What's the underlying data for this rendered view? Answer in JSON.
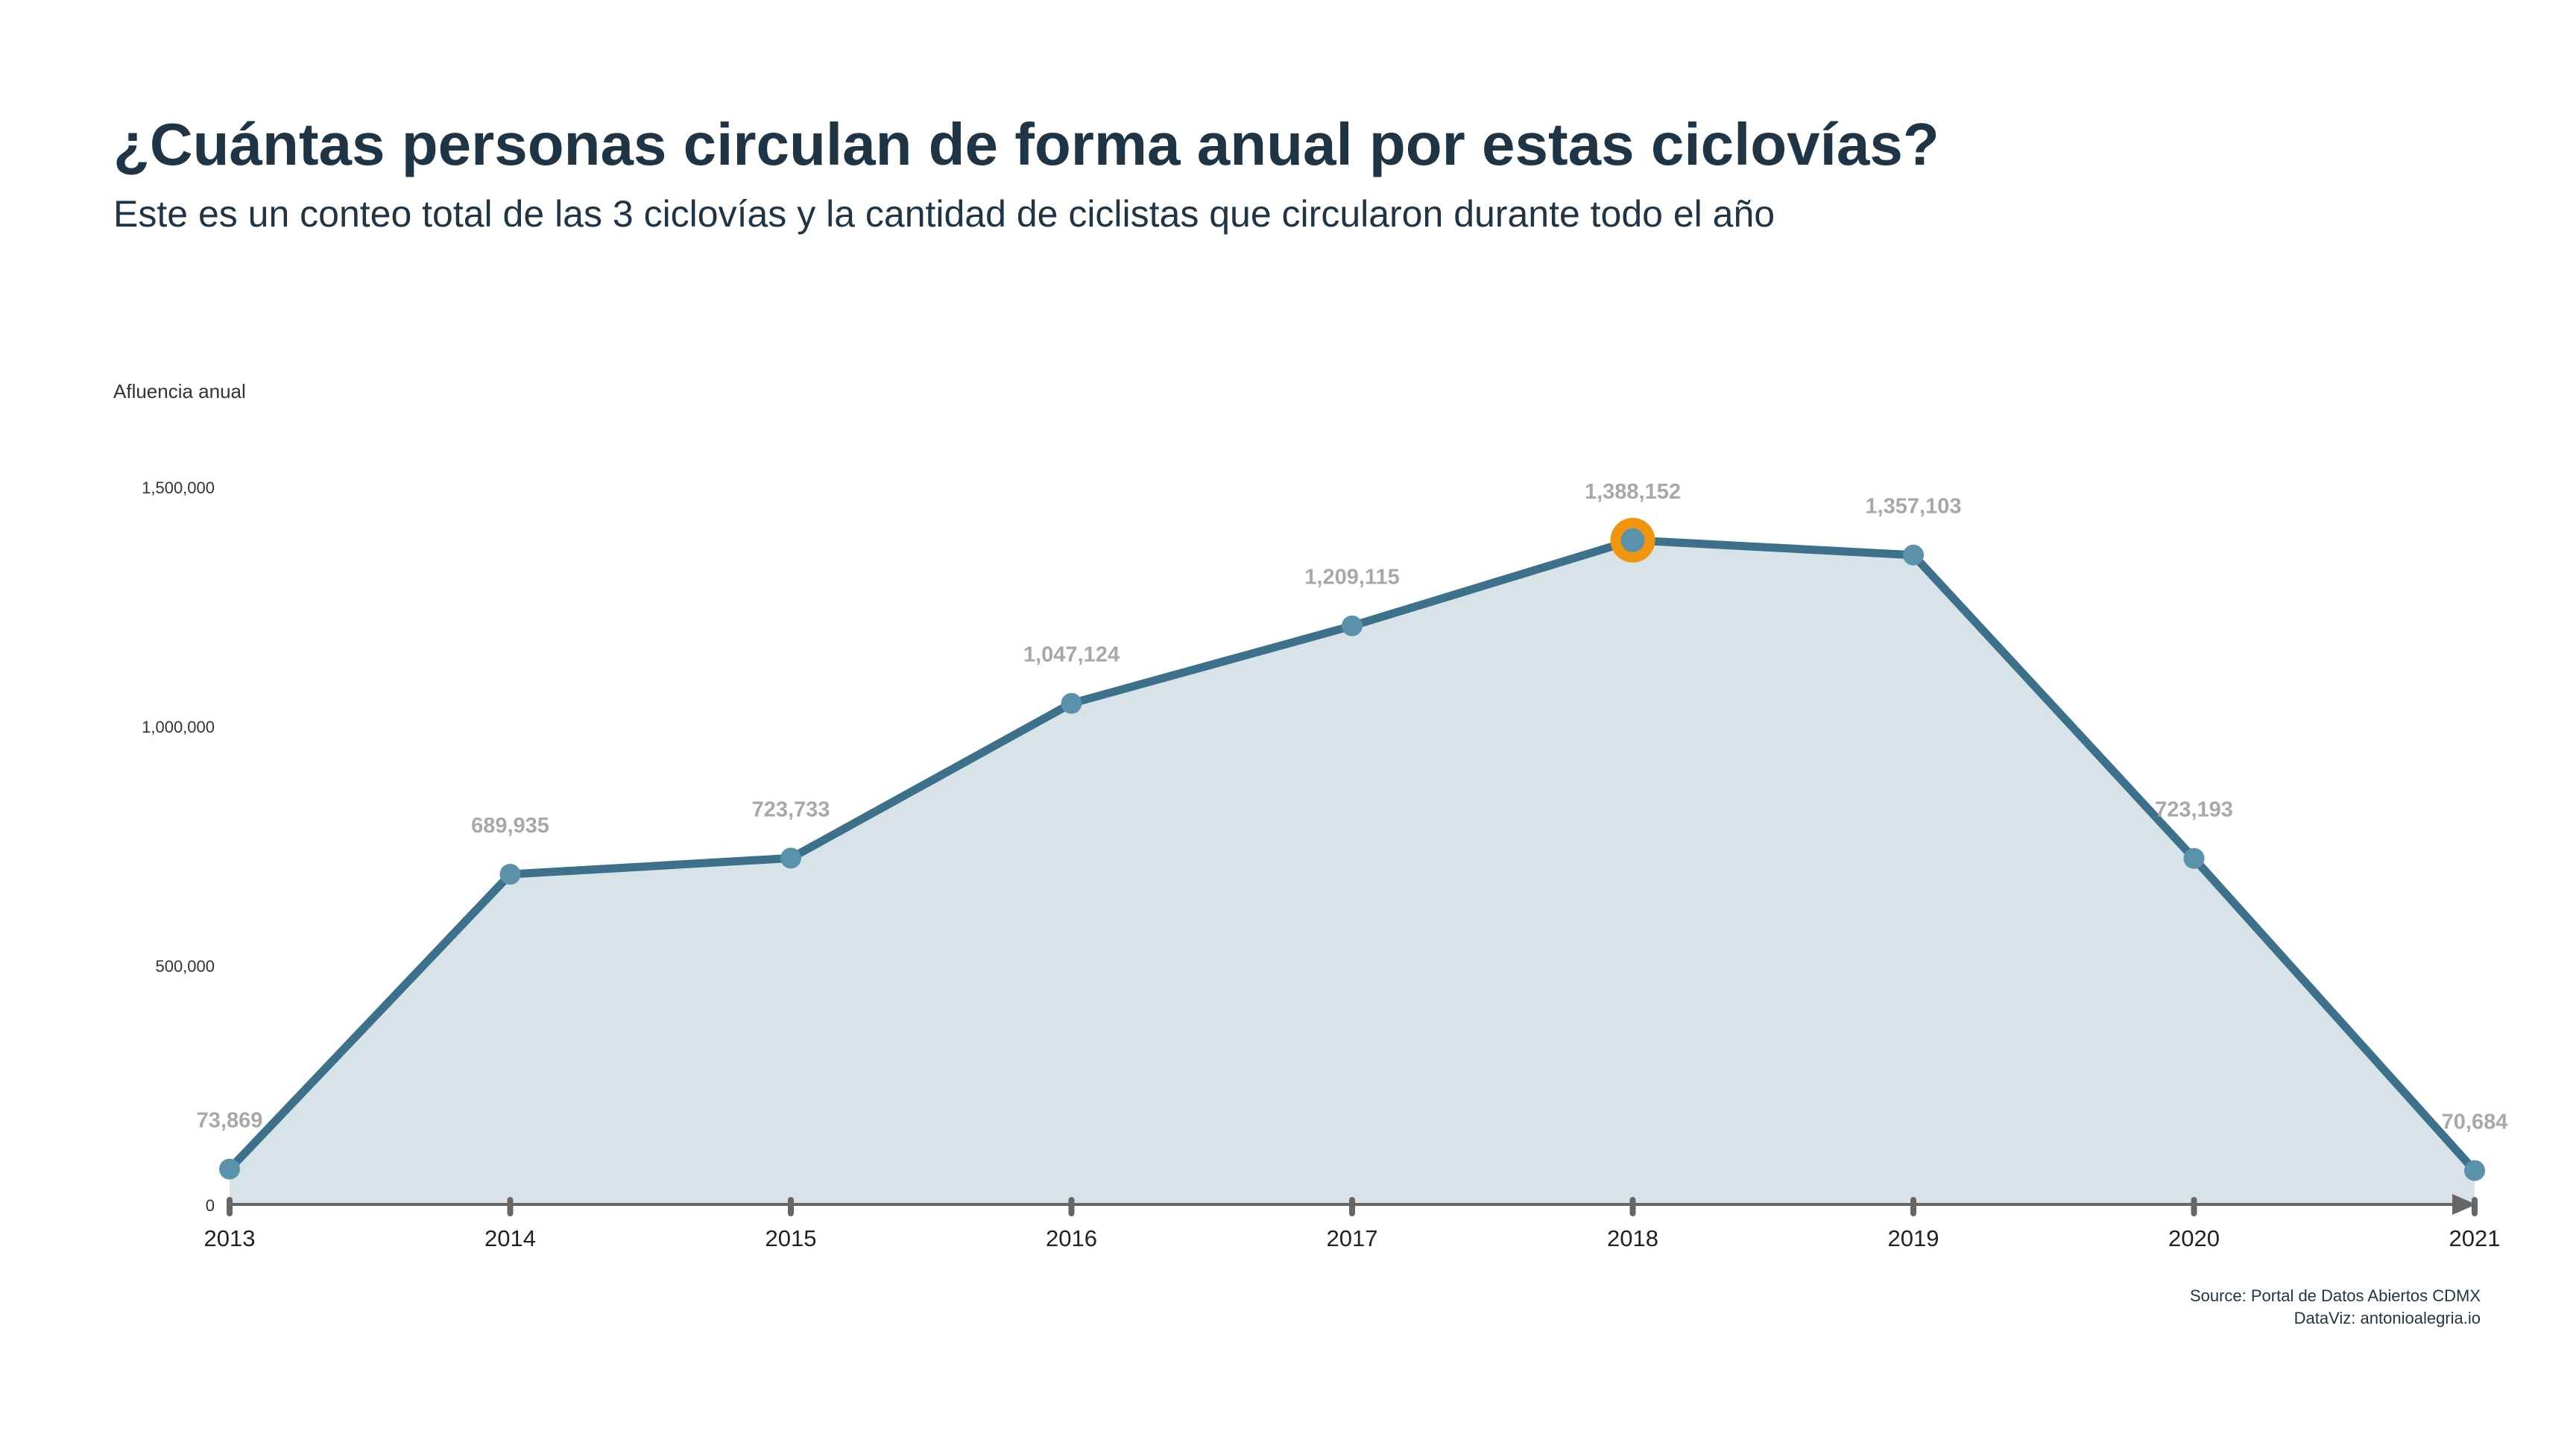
{
  "header": {
    "title": "¿Cuántas personas circulan de forma anual por estas ciclovías?",
    "subtitle": "Este es un conteo total de las 3 ciclovías y la cantidad de ciclistas que circularon durante todo el año"
  },
  "footer": {
    "source": "Source: Portal de Datos Abiertos CDMX",
    "dataviz": "DataViz: antonioalegria.io"
  },
  "colors": {
    "line": "#3d718b",
    "area": "#d8e2e9",
    "point": "#5b92ab",
    "highlight": "#f0960e",
    "data_label": "#a8a8a8",
    "axis": "#666666"
  },
  "chart_data": {
    "type": "area",
    "title": "¿Cuántas personas circulan de forma anual por estas ciclovías?",
    "subtitle": "Este es un conteo total de las 3 ciclovías y la cantidad de ciclistas que circularon durante todo el año",
    "xlabel": "",
    "ylabel": "Afluencia anual",
    "categories": [
      "2013",
      "2014",
      "2015",
      "2016",
      "2017",
      "2018",
      "2019",
      "2020",
      "2021"
    ],
    "series": [
      {
        "values": [
          73869,
          689935,
          723733,
          1047124,
          1209115,
          1388152,
          1357103,
          723193,
          70684
        ],
        "labels": [
          "73,869",
          "689,935",
          "723,733",
          "1,047,124",
          "1,209,115",
          "1,388,152",
          "1,357,103",
          "723,193",
          "70,684"
        ]
      }
    ],
    "highlight_category": "2018",
    "ylim": [
      0,
      1500000
    ],
    "yticks": [
      0,
      500000,
      1000000,
      1500000
    ],
    "ytick_labels": [
      "0",
      "500,000",
      "1,000,000",
      "1,500,000"
    ],
    "grid": false,
    "legend": "none"
  }
}
